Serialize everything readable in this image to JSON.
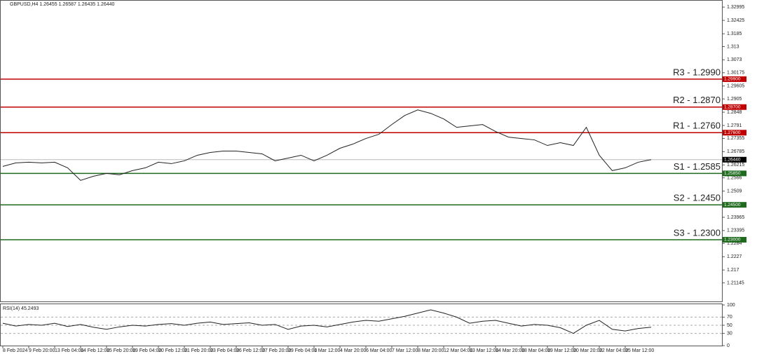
{
  "chart_data": [
    {
      "type": "line",
      "title": "GBPUSD,H4 1.26455 1.26587 1.26435 1.26440",
      "color": "#222222",
      "categories": [
        "8 Feb 2024",
        null,
        "9 Feb 20:00",
        null,
        "13 Feb 04:00",
        null,
        "14 Feb 12:00",
        null,
        "15 Feb 20:00",
        null,
        "19 Feb 04:00",
        null,
        "20 Feb 12:00",
        null,
        "21 Feb 20:00",
        null,
        "23 Feb 04:00",
        null,
        "26 Feb 12:00",
        null,
        "27 Feb 20:00",
        null,
        "29 Feb 04:00",
        null,
        "1 Mar 12:00",
        null,
        "4 Mar 20:00",
        null,
        "6 Mar 04:00",
        null,
        "7 Mar 12:00",
        null,
        "8 Mar 20:00",
        null,
        "12 Mar 04:00",
        null,
        "13 Mar 12:00",
        null,
        "14 Mar 20:00",
        null,
        "18 Mar 04:00",
        null,
        "19 Mar 12:00",
        null,
        "20 Mar 20:00",
        null,
        "22 Mar 04:00",
        null,
        "25 Mar 12:00",
        null,
        null
      ],
      "values": [
        1.2615,
        1.263,
        1.2633,
        1.263,
        1.2633,
        1.2609,
        1.2555,
        1.2573,
        1.2585,
        1.2579,
        1.2597,
        1.2609,
        1.2633,
        1.2627,
        1.2639,
        1.2663,
        1.2675,
        1.2681,
        1.2681,
        1.2675,
        1.2669,
        1.2639,
        1.2651,
        1.2663,
        1.2639,
        1.2663,
        1.2693,
        1.2711,
        1.2735,
        1.2753,
        1.2795,
        1.2834,
        1.2858,
        1.2843,
        1.2819,
        1.2783,
        1.2789,
        1.2795,
        1.2765,
        1.2741,
        1.2735,
        1.2729,
        1.2705,
        1.2717,
        1.2705,
        1.2783,
        1.2663,
        1.2597,
        1.2609,
        1.2633,
        1.2644
      ],
      "ylim": [
        1.205,
        1.3315
      ],
      "yticks": [
        1.32995,
        1.32425,
        1.3185,
        1.313,
        1.3073,
        1.30175,
        1.29605,
        1.2905,
        1.2848,
        1.2791,
        1.27355,
        1.26785,
        1.26215,
        1.2566,
        1.2509,
        1.2452,
        1.23965,
        1.23395,
        1.2284,
        1.2227,
        1.217,
        1.21145
      ],
      "levels": [
        {
          "label": "R3 - 1.2990",
          "value": 1.299,
          "tag": "1.29900",
          "color": "#c00000"
        },
        {
          "label": "R2 - 1.2870",
          "value": 1.287,
          "tag": "1.28700",
          "color": "#c00000"
        },
        {
          "label": "R1 - 1.2760",
          "value": 1.276,
          "tag": "1.27600",
          "color": "#c00000"
        },
        {
          "label": "S1 - 1.2585",
          "value": 1.2585,
          "tag": "1.25850",
          "color": "#1e6b1e"
        },
        {
          "label": "S2 - 1.2450",
          "value": 1.245,
          "tag": "1.24500",
          "color": "#1e6b1e"
        },
        {
          "label": "S3 - 1.2300",
          "value": 1.23,
          "tag": "1.23000",
          "color": "#1e6b1e"
        }
      ],
      "current": {
        "value": 1.2644,
        "tag": "1.26440"
      }
    },
    {
      "type": "line",
      "title": "RSI(14) 45.2493",
      "color": "#222222",
      "values": [
        55,
        48,
        52,
        50,
        55,
        47,
        52,
        45,
        40,
        46,
        50,
        48,
        52,
        54,
        50,
        55,
        58,
        52,
        54,
        56,
        50,
        52,
        40,
        48,
        50,
        46,
        52,
        58,
        62,
        60,
        66,
        72,
        80,
        88,
        80,
        70,
        55,
        60,
        62,
        55,
        48,
        52,
        50,
        44,
        30,
        50,
        62,
        40,
        36,
        42,
        45.2493
      ],
      "ylim": [
        0,
        100
      ],
      "yticks": [
        0,
        30,
        50,
        70,
        100
      ],
      "dashed_levels": [
        30,
        50,
        70
      ]
    }
  ]
}
